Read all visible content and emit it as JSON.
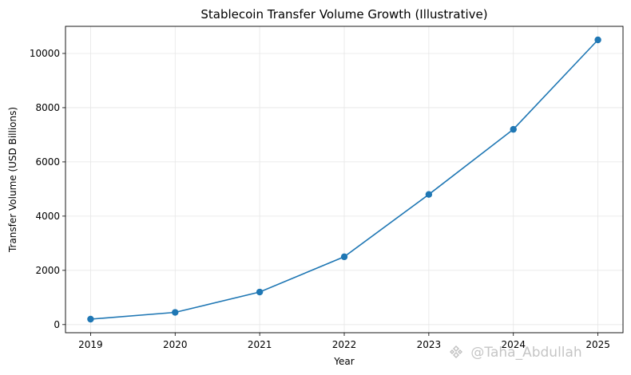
{
  "chart_data": {
    "type": "line",
    "title": "Stablecoin Transfer Volume Growth (Illustrative)",
    "xlabel": "Year",
    "ylabel": "Transfer Volume (USD Billions)",
    "categories": [
      "2019",
      "2020",
      "2021",
      "2022",
      "2023",
      "2024",
      "2025"
    ],
    "series": [
      {
        "values": [
          200,
          450,
          1200,
          2500,
          4800,
          7200,
          10500
        ],
        "color": "#1f77b4",
        "marker": "circle"
      }
    ],
    "yticks": [
      0,
      2000,
      4000,
      6000,
      8000,
      10000
    ],
    "ylim": [
      -300,
      11000
    ],
    "grid": true,
    "legend": "none"
  },
  "watermark": {
    "text": "@Taha_Abdullah",
    "icon": "binance-square-icon"
  }
}
